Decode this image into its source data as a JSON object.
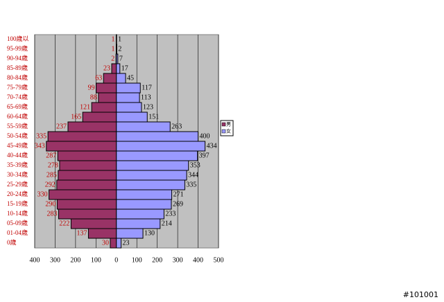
{
  "chart_data": {
    "type": "pyramid",
    "categories": [
      "100歳以",
      "95-99歳",
      "90-94歳",
      "85-89歳",
      "80-84歳",
      "75-79歳",
      "70-74歳",
      "65-69歳",
      "60-64歳",
      "55-59歳",
      "50-54歳",
      "45-49歳",
      "40-44歳",
      "35-39歳",
      "30-34歳",
      "25-29歳",
      "20-24歳",
      "15-19歳",
      "10-14歳",
      "05-09歳",
      "01-04歳",
      "0歳"
    ],
    "series": [
      {
        "name": "男",
        "color": "#993366",
        "side": "left",
        "values": [
          1,
          1,
          2,
          23,
          63,
          99,
          88,
          121,
          165,
          237,
          335,
          343,
          287,
          278,
          285,
          292,
          330,
          290,
          283,
          222,
          137,
          30
        ]
      },
      {
        "name": "女",
        "color": "#9999ff",
        "side": "right",
        "values": [
          1,
          2,
          7,
          17,
          45,
          117,
          113,
          123,
          151,
          263,
          400,
          434,
          397,
          353,
          344,
          335,
          271,
          269,
          233,
          214,
          130,
          23
        ]
      }
    ],
    "xlim": [
      -400,
      500
    ],
    "xticks": [
      {
        "value": -400,
        "label": "400"
      },
      {
        "value": -300,
        "label": "300"
      },
      {
        "value": -200,
        "label": "200"
      },
      {
        "value": -100,
        "label": "100"
      },
      0,
      100,
      200,
      300,
      400,
      500
    ],
    "grid": true,
    "footer": "#101001"
  }
}
